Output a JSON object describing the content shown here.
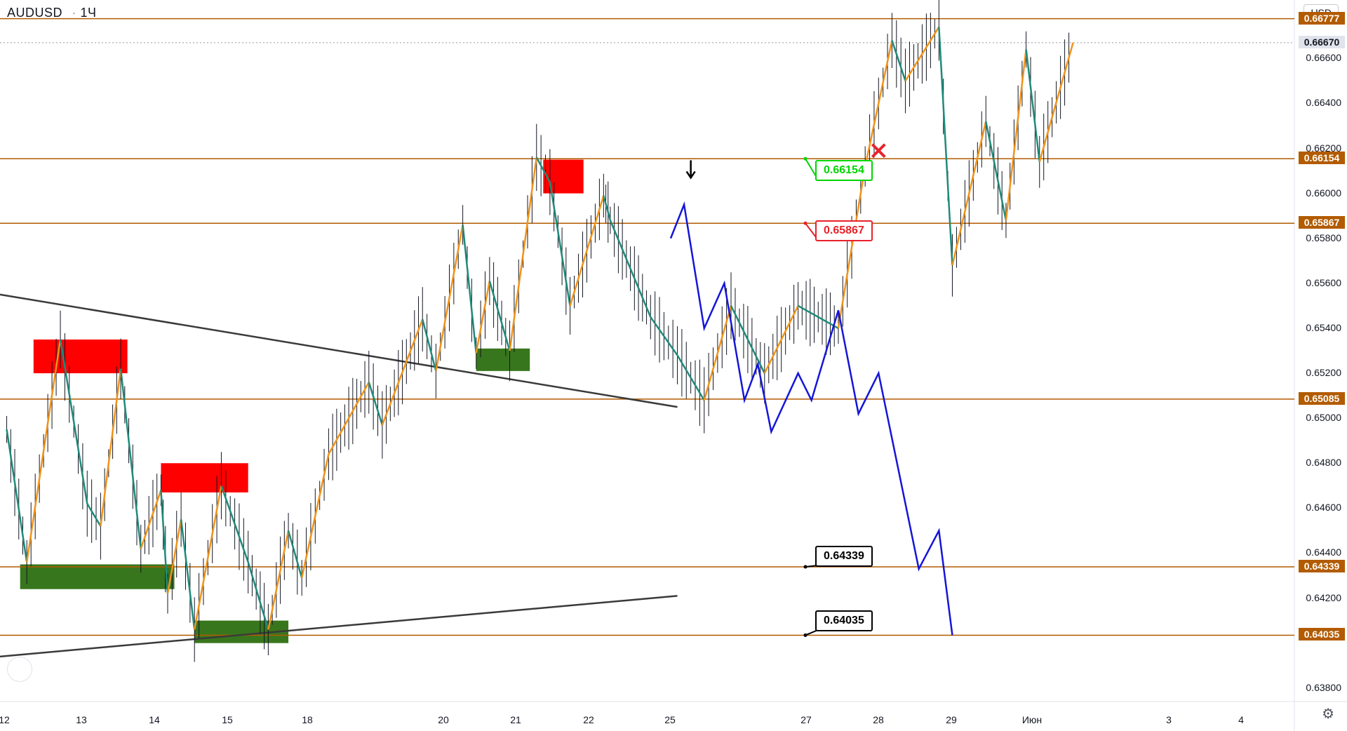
{
  "header": {
    "symbol": "AUDUSD",
    "interval": "1Ч",
    "currency_button": "USD"
  },
  "colors": {
    "horizontal_level": "#b25b00",
    "level_tag_bg": "#b25b00",
    "current_price_tag_bg": "#e0e3eb",
    "zigzag_up": "#f0931a",
    "zigzag_down": "#1f8a7a",
    "projection": "#1515d8",
    "trendline": "#3a3a3a",
    "supply_zone": "#ff0000",
    "demand_zone": "#38761d",
    "callout_green": "#00d400",
    "callout_red": "#e8222a",
    "callout_black": "#000000"
  },
  "y_axis": {
    "ticks": [
      "0.66600",
      "0.66400",
      "0.66200",
      "0.66000",
      "0.65800",
      "0.65600",
      "0.65400",
      "0.65200",
      "0.65000",
      "0.64800",
      "0.64600",
      "0.64400",
      "0.64200",
      "0.64000",
      "0.63800"
    ],
    "current_price": "0.66670"
  },
  "x_axis": {
    "ticks": [
      "12",
      "13",
      "14",
      "15",
      "18",
      "20",
      "21",
      "22",
      "25",
      "27",
      "28",
      "29",
      "Июн",
      "3",
      "4"
    ]
  },
  "chart_data": {
    "type": "line",
    "title": "AUDUSD 1Ч",
    "ylim": [
      0.6374,
      0.6686
    ],
    "levels": [
      0.66777,
      0.66154,
      0.65867,
      0.65085,
      0.64339,
      0.64035
    ],
    "level_labels": [
      "0.66777",
      "0.66154",
      "0.65867",
      "0.65085",
      "0.64339",
      "0.64035"
    ],
    "callouts": [
      {
        "text": "0.66154",
        "color": "green"
      },
      {
        "text": "0.65867",
        "color": "red"
      },
      {
        "text": "0.64339",
        "color": "black"
      },
      {
        "text": "0.64035",
        "color": "black"
      }
    ],
    "zigzag": [
      [
        12.0,
        0.6495
      ],
      [
        12.3,
        0.6436
      ],
      [
        12.8,
        0.6535
      ],
      [
        13.2,
        0.6462
      ],
      [
        13.4,
        0.6452
      ],
      [
        13.7,
        0.6522
      ],
      [
        14.0,
        0.6442
      ],
      [
        14.3,
        0.6468
      ],
      [
        14.4,
        0.6422
      ],
      [
        14.6,
        0.6455
      ],
      [
        14.8,
        0.6406
      ],
      [
        15.2,
        0.647
      ],
      [
        15.6,
        0.6436
      ],
      [
        15.9,
        0.6406
      ],
      [
        16.2,
        0.645
      ],
      [
        16.4,
        0.6429
      ],
      [
        16.8,
        0.6484
      ],
      [
        17.4,
        0.6516
      ],
      [
        17.6,
        0.6497
      ],
      [
        18.2,
        0.6544
      ],
      [
        18.4,
        0.6521
      ],
      [
        18.8,
        0.6586
      ],
      [
        19.0,
        0.6529
      ],
      [
        19.2,
        0.6561
      ],
      [
        19.5,
        0.653
      ],
      [
        19.9,
        0.6616
      ],
      [
        20.1,
        0.6605
      ],
      [
        20.4,
        0.655
      ],
      [
        20.9,
        0.6599
      ],
      [
        21.0,
        0.6588
      ],
      [
        21.6,
        0.6545
      ],
      [
        22.0,
        0.6528
      ],
      [
        22.4,
        0.6508
      ],
      [
        22.8,
        0.655
      ],
      [
        23.3,
        0.652
      ],
      [
        23.8,
        0.655
      ],
      [
        24.4,
        0.654
      ],
      [
        24.8,
        0.6612
      ],
      [
        25.2,
        0.6668
      ],
      [
        25.4,
        0.665
      ],
      [
        25.9,
        0.6674
      ],
      [
        26.1,
        0.6568
      ],
      [
        26.6,
        0.6632
      ],
      [
        26.9,
        0.6588
      ],
      [
        27.2,
        0.6664
      ],
      [
        27.4,
        0.6614
      ],
      [
        27.9,
        0.6667
      ]
    ],
    "projection": [
      [
        21.9,
        0.658
      ],
      [
        22.1,
        0.6595
      ],
      [
        22.4,
        0.654
      ],
      [
        22.7,
        0.656
      ],
      [
        23.0,
        0.6508
      ],
      [
        23.2,
        0.6524
      ],
      [
        23.4,
        0.6494
      ],
      [
        23.8,
        0.652
      ],
      [
        24.0,
        0.6508
      ],
      [
        24.4,
        0.6548
      ],
      [
        24.7,
        0.6502
      ],
      [
        25.0,
        0.652
      ],
      [
        25.6,
        0.6433
      ],
      [
        25.9,
        0.645
      ],
      [
        26.1,
        0.64035
      ]
    ],
    "trendlines": [
      {
        "from": [
          11.9,
          0.6555
        ],
        "to": [
          22.0,
          0.6505
        ]
      },
      {
        "from": [
          11.9,
          0.6394
        ],
        "to": [
          22.0,
          0.6421
        ]
      }
    ],
    "zones": [
      {
        "kind": "supply",
        "x": [
          12.4,
          13.8
        ],
        "y": [
          0.652,
          0.6535
        ]
      },
      {
        "kind": "supply",
        "x": [
          14.3,
          15.6
        ],
        "y": [
          0.6467,
          0.648
        ]
      },
      {
        "kind": "supply",
        "x": [
          20.0,
          20.6
        ],
        "y": [
          0.66,
          0.6615
        ]
      },
      {
        "kind": "demand",
        "x": [
          12.2,
          14.5
        ],
        "y": [
          0.6424,
          0.6435
        ]
      },
      {
        "kind": "demand",
        "x": [
          14.8,
          16.2
        ],
        "y": [
          0.64,
          0.641
        ]
      },
      {
        "kind": "demand",
        "x": [
          19.0,
          19.8
        ],
        "y": [
          0.6521,
          0.6531
        ]
      }
    ]
  }
}
